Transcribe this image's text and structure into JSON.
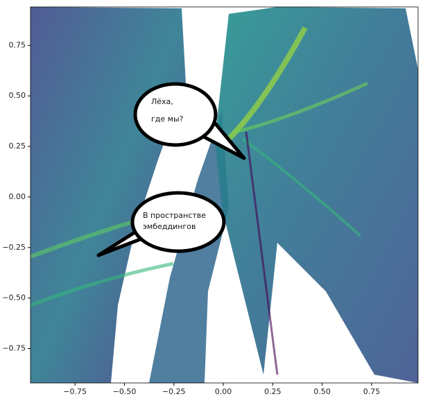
{
  "chart_data": {
    "type": "density",
    "xlim": [
      -0.975,
      0.985
    ],
    "ylim": [
      -0.92,
      0.94
    ],
    "xticks": [
      {
        "value": -0.75,
        "label": "−0.75"
      },
      {
        "value": -0.5,
        "label": "−0.50"
      },
      {
        "value": -0.25,
        "label": "−0.25"
      },
      {
        "value": 0,
        "label": "0.00"
      },
      0.25,
      {
        "value": 0.5,
        "label": "0.50"
      },
      0.75
    ],
    "yticks": [
      {
        "value": -0.75,
        "label": "−0.75"
      },
      {
        "value": -0.5,
        "label": "−0.50"
      },
      {
        "value": -0.25,
        "label": "−0.25"
      },
      {
        "value": 0,
        "label": "0.00"
      },
      0.25,
      {
        "value": 0.5,
        "label": "0.50"
      },
      0.75
    ],
    "annotations": [
      {
        "lines": [
          "Лёха,",
          "где мы?"
        ]
      },
      {
        "lines": [
          "В пространстве",
          "эмбеддингов"
        ]
      }
    ]
  }
}
